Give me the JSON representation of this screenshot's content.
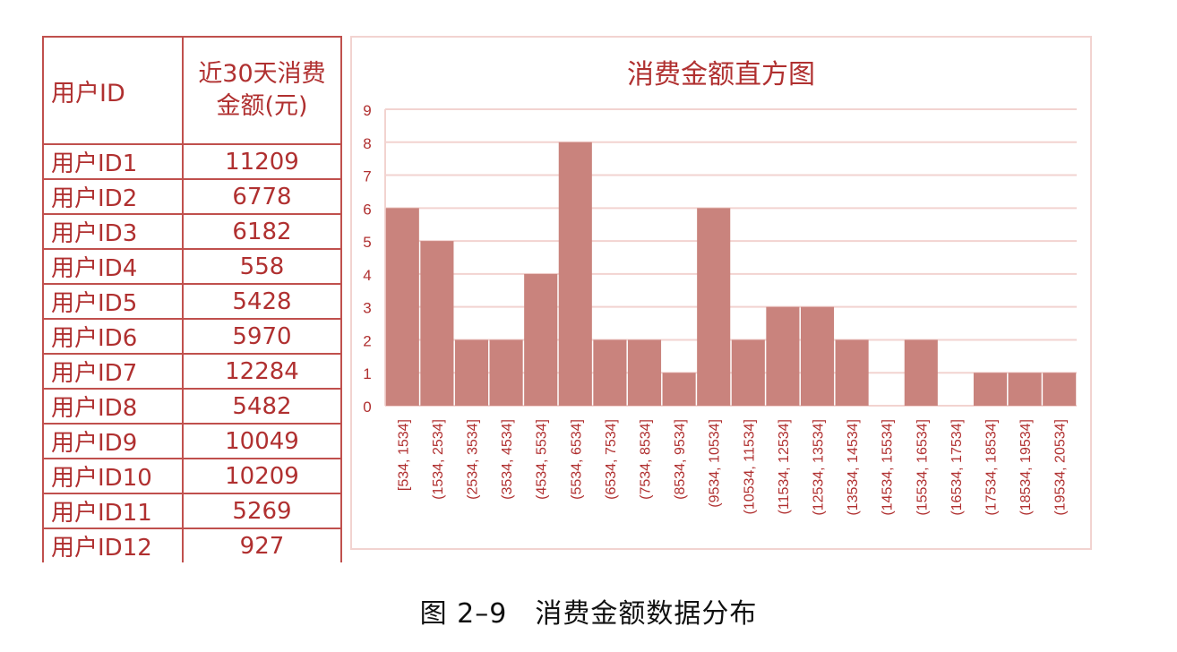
{
  "table": {
    "header_id": "用户ID",
    "header_amount_line1": "近30天消费",
    "header_amount_line2": "金额(元)",
    "rows": [
      {
        "id": "用户ID1",
        "amount": "11209"
      },
      {
        "id": "用户ID2",
        "amount": "6778"
      },
      {
        "id": "用户ID3",
        "amount": "6182"
      },
      {
        "id": "用户ID4",
        "amount": "558"
      },
      {
        "id": "用户ID5",
        "amount": "5428"
      },
      {
        "id": "用户ID6",
        "amount": "5970"
      },
      {
        "id": "用户ID7",
        "amount": "12284"
      },
      {
        "id": "用户ID8",
        "amount": "5482"
      },
      {
        "id": "用户ID9",
        "amount": "10049"
      },
      {
        "id": "用户ID10",
        "amount": "10209"
      },
      {
        "id": "用户ID11",
        "amount": "5269"
      },
      {
        "id": "用户ID12",
        "amount": "927"
      }
    ]
  },
  "caption": "图 2–9　消费金额数据分布",
  "chart_data": {
    "type": "bar",
    "title": "消费金额直方图",
    "xlabel": "",
    "ylabel": "",
    "ylim": [
      0,
      9
    ],
    "yticks": [
      "0",
      "1",
      "2",
      "3",
      "4",
      "5",
      "6",
      "7",
      "8",
      "9"
    ],
    "grid": true,
    "legend": "none",
    "bar_color": "#c9837d",
    "gridline_color": "#f2d3d0",
    "categories": [
      "[534, 1534]",
      "(1534, 2534]",
      "(2534, 3534]",
      "(3534, 4534]",
      "(4534, 5534]",
      "(5534, 6534]",
      "(6534, 7534]",
      "(7534, 8534]",
      "(8534, 9534]",
      "(9534, 10534]",
      "(10534, 11534]",
      "(11534, 12534]",
      "(12534, 13534]",
      "(13534, 14534]",
      "(14534, 15534]",
      "(15534, 16534]",
      "(16534, 17534]",
      "(17534, 18534]",
      "(18534, 19534]",
      "(19534, 20534]"
    ],
    "values": [
      6,
      5,
      2,
      2,
      4,
      8,
      2,
      2,
      1,
      6,
      2,
      3,
      3,
      2,
      0,
      2,
      0,
      1,
      1,
      1
    ]
  },
  "colors": {
    "accent": "#c0504d",
    "text_red": "#b03030"
  }
}
